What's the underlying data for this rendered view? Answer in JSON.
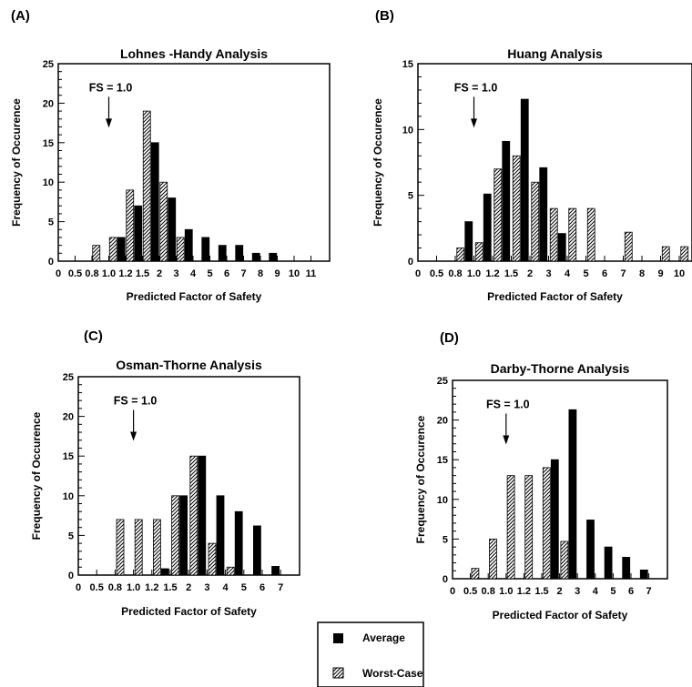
{
  "legend": {
    "average_label": "Average",
    "worst_label": "Worst-Case"
  },
  "colors": {
    "average": "#000000",
    "worst_case_hatch": "#000000",
    "background": "#ffffff"
  },
  "chart_data": [
    {
      "panel": "(A)",
      "type": "bar",
      "title": "Lohnes -Handy Analysis",
      "xlabel": "Predicted Factor of Safety",
      "ylabel": "Frequency of Occurence",
      "ylim": [
        0,
        25
      ],
      "yticks": [
        0,
        5,
        10,
        15,
        20,
        25
      ],
      "xticks": [
        "0",
        "0.5",
        "0.8",
        "1.0",
        "1.2",
        "1.5",
        "2",
        "3",
        "4",
        "5",
        "6",
        "7",
        "8",
        "9",
        "10",
        "11"
      ],
      "annotation": "FS = 1.0",
      "annotation_tick": 3,
      "series": [
        {
          "name": "Worst-Case",
          "x": [
            2.5,
            3.5,
            4.5,
            5.5,
            6.5,
            7.5
          ],
          "values": [
            2,
            3,
            9,
            19,
            10,
            3
          ]
        },
        {
          "name": "Average",
          "x": [
            3.5,
            4.5,
            5.5,
            6.5,
            7.5,
            8.5,
            9.5,
            10.5,
            11.5,
            12.5
          ],
          "values": [
            3,
            7,
            15,
            8,
            4,
            3,
            2,
            2,
            1,
            1
          ]
        }
      ]
    },
    {
      "panel": "(B)",
      "type": "bar",
      "title": "Huang Analysis",
      "xlabel": "Predicted Factor of Safety",
      "ylabel": "Frequency of Occurence",
      "ylim": [
        0,
        15
      ],
      "yticks": [
        0,
        5,
        10,
        15
      ],
      "xticks": [
        "0",
        "0.5",
        "0.8",
        "1.0",
        "1.2",
        "1.5",
        "2",
        "3",
        "4",
        "5",
        "6",
        "7",
        "8",
        "9",
        "10"
      ],
      "annotation": "FS = 1.0",
      "annotation_tick": 3,
      "series": [
        {
          "name": "Worst-Case",
          "x": [
            2.5,
            3.5,
            4.5,
            5.5,
            6.5,
            7.5,
            8.5,
            9.5,
            11.5,
            13.5,
            14.5,
            15.5
          ],
          "values": [
            1,
            1.4,
            7,
            8,
            6,
            4,
            4,
            4,
            2.2,
            1.1,
            1.1,
            2.2
          ]
        },
        {
          "name": "Average",
          "x": [
            2.5,
            3.5,
            4.5,
            5.5,
            6.5,
            7.5
          ],
          "values": [
            3,
            5.1,
            9.1,
            12.3,
            7.1,
            2.1
          ]
        }
      ]
    },
    {
      "panel": "(C)",
      "type": "bar",
      "title": "Osman-Thorne Analysis",
      "xlabel": "Predicted Factor of Safety",
      "ylabel": "Frequency of Occurence",
      "ylim": [
        0,
        25
      ],
      "yticks": [
        0,
        5,
        10,
        15,
        20,
        25
      ],
      "xticks": [
        "0",
        "0.5",
        "0.8",
        "1.0",
        "1.2",
        "1.5",
        "2",
        "3",
        "4",
        "5",
        "6",
        "7"
      ],
      "annotation": "FS = 1.0",
      "annotation_tick": 3,
      "series": [
        {
          "name": "Worst-Case",
          "x": [
            2.5,
            3.5,
            4.5,
            5.5,
            6.5,
            7.5,
            8.5
          ],
          "values": [
            7,
            7,
            7,
            10,
            15,
            4,
            1
          ]
        },
        {
          "name": "Average",
          "x": [
            4.5,
            5.5,
            6.5,
            7.5,
            8.5,
            9.5,
            10.5
          ],
          "values": [
            0.8,
            10,
            15,
            10,
            8,
            6.2,
            1.1
          ]
        }
      ]
    },
    {
      "panel": "(D)",
      "type": "bar",
      "title": "Darby-Thorne Analysis",
      "xlabel": "Predicted Factor of Safety",
      "ylabel": "Frequency of Occurence",
      "ylim": [
        0,
        25
      ],
      "yticks": [
        0,
        5,
        10,
        15,
        20,
        25
      ],
      "xticks": [
        "0",
        "0.5",
        "0.8",
        "1.0",
        "1.2",
        "1.5",
        "2",
        "3",
        "4",
        "5",
        "6",
        "7"
      ],
      "annotation": "FS = 1.0",
      "annotation_tick": 3,
      "series": [
        {
          "name": "Worst-Case",
          "x": [
            1.5,
            2.5,
            3.5,
            4.5,
            5.5,
            6.5
          ],
          "values": [
            1.3,
            5,
            13,
            13,
            14,
            4.7
          ]
        },
        {
          "name": "Average",
          "x": [
            5.5,
            6.5,
            7.5,
            8.5,
            9.5,
            10.5
          ],
          "values": [
            15,
            21.3,
            7.4,
            4,
            2.7,
            1.1
          ]
        }
      ]
    }
  ]
}
